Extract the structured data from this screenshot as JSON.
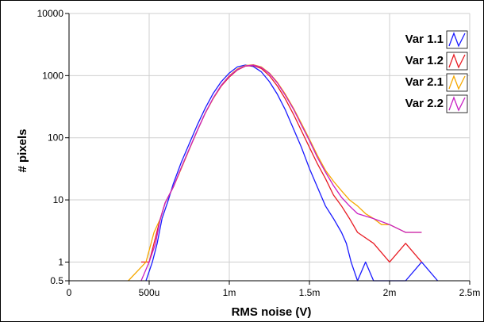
{
  "chart_data": {
    "type": "line",
    "xlabel": "RMS noise (V)",
    "ylabel": "# pixels",
    "xscale": "linear",
    "yscale": "log",
    "xlim": [
      0,
      0.0025
    ],
    "ylim": [
      0.5,
      10000
    ],
    "grid": true,
    "legend_position": "top-right",
    "x_ticks": [
      {
        "value": 0,
        "label": "0"
      },
      {
        "value": 0.0005,
        "label": "500u"
      },
      {
        "value": 0.001,
        "label": "1m"
      },
      {
        "value": 0.0015,
        "label": "1.5m"
      },
      {
        "value": 0.002,
        "label": "2m"
      },
      {
        "value": 0.0025,
        "label": "2.5m"
      }
    ],
    "y_ticks": [
      {
        "value": 0.5,
        "label": "0.5"
      },
      {
        "value": 1,
        "label": "1"
      },
      {
        "value": 10,
        "label": "10"
      },
      {
        "value": 100,
        "label": "100"
      },
      {
        "value": 1000,
        "label": "1000"
      },
      {
        "value": 10000,
        "label": "10000"
      }
    ],
    "series": [
      {
        "name": "Var 1.1",
        "color": "#1a1aff",
        "x": [
          0.00048,
          0.00052,
          0.00055,
          0.00058,
          0.00062,
          0.00065,
          0.0007,
          0.00075,
          0.0008,
          0.00085,
          0.0009,
          0.00095,
          0.001,
          0.00105,
          0.0011,
          0.00115,
          0.0012,
          0.00125,
          0.0013,
          0.00135,
          0.0014,
          0.00145,
          0.0015,
          0.00155,
          0.0016,
          0.00165,
          0.0017,
          0.00173,
          0.00176,
          0.0018,
          0.00185,
          0.0019,
          0.002,
          0.0021,
          0.0022,
          0.0023
        ],
        "y": [
          0.5,
          1,
          2,
          5,
          10,
          18,
          40,
          80,
          160,
          300,
          520,
          800,
          1100,
          1380,
          1480,
          1400,
          1150,
          800,
          500,
          280,
          140,
          70,
          32,
          16,
          8,
          5,
          3,
          2,
          1,
          0.5,
          1,
          0.5,
          0.5,
          0.5,
          1,
          0.5
        ]
      },
      {
        "name": "Var 1.2",
        "color": "#e81c24",
        "x": [
          0.00045,
          0.0005,
          0.00053,
          0.00056,
          0.0006,
          0.00065,
          0.0007,
          0.00075,
          0.0008,
          0.00085,
          0.0009,
          0.00095,
          0.001,
          0.00105,
          0.0011,
          0.00115,
          0.0012,
          0.00125,
          0.0013,
          0.00135,
          0.0014,
          0.00145,
          0.0015,
          0.00155,
          0.0016,
          0.00165,
          0.0017,
          0.00175,
          0.0018,
          0.0019,
          0.002,
          0.0021,
          0.0022
        ],
        "y": [
          1,
          1,
          2,
          4,
          9,
          16,
          32,
          65,
          130,
          250,
          430,
          680,
          950,
          1230,
          1420,
          1450,
          1300,
          1000,
          680,
          420,
          240,
          130,
          70,
          38,
          22,
          12,
          8,
          5,
          3,
          2,
          1,
          2,
          1
        ]
      },
      {
        "name": "Var 2.1",
        "color": "#f6a800",
        "x": [
          0.00037,
          0.00048,
          0.00053,
          0.00057,
          0.0006,
          0.00065,
          0.0007,
          0.00075,
          0.0008,
          0.00085,
          0.0009,
          0.00095,
          0.001,
          0.00105,
          0.0011,
          0.00115,
          0.0012,
          0.00125,
          0.0013,
          0.00135,
          0.0014,
          0.00145,
          0.0015,
          0.00155,
          0.0016,
          0.00165,
          0.0017,
          0.00175,
          0.0018,
          0.00185,
          0.0019,
          0.00195,
          0.002,
          0.0021,
          0.0022
        ],
        "y": [
          0.5,
          1,
          3,
          5,
          9,
          16,
          32,
          65,
          130,
          250,
          430,
          700,
          1000,
          1280,
          1450,
          1500,
          1380,
          1100,
          780,
          500,
          300,
          170,
          95,
          52,
          30,
          20,
          14,
          10,
          8,
          6,
          5,
          4,
          4,
          3,
          3
        ]
      },
      {
        "name": "Var 2.2",
        "color": "#c81fc4",
        "x": [
          0.00045,
          0.0005,
          0.00054,
          0.00057,
          0.0006,
          0.00065,
          0.0007,
          0.00075,
          0.0008,
          0.00085,
          0.0009,
          0.00095,
          0.001,
          0.00105,
          0.0011,
          0.00115,
          0.0012,
          0.00125,
          0.0013,
          0.00135,
          0.0014,
          0.00145,
          0.0015,
          0.00155,
          0.0016,
          0.00165,
          0.0017,
          0.00175,
          0.0018,
          0.0019,
          0.002,
          0.0021,
          0.0022
        ],
        "y": [
          0.5,
          1,
          2,
          5,
          9,
          16,
          33,
          66,
          130,
          250,
          440,
          700,
          980,
          1250,
          1430,
          1480,
          1350,
          1080,
          760,
          480,
          290,
          160,
          90,
          48,
          28,
          17,
          11,
          8,
          6,
          5,
          4,
          3,
          3
        ]
      }
    ]
  }
}
